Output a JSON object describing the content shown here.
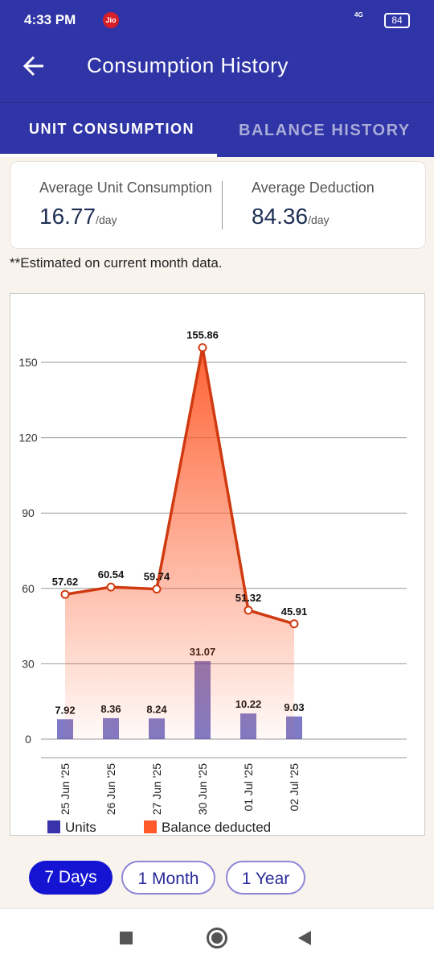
{
  "status_bar": {
    "time": "4:33 PM",
    "carrier": "Jio",
    "network": "4G",
    "battery": "84"
  },
  "header": {
    "title": "Consumption History"
  },
  "tabs": [
    "UNIT CONSUMPTION",
    "BALANCE HISTORY"
  ],
  "summary": [
    {
      "label": "Average Unit Consumption",
      "value": 16.77,
      "unit": "/day"
    },
    {
      "label": "Average Deduction",
      "value": 84.36,
      "unit": "/day"
    }
  ],
  "note": "**Estimated on current month data.",
  "chart_data": {
    "type": "bar-area",
    "categories": [
      "25 Jun '25",
      "26 Jun '25",
      "27 Jun '25",
      "30 Jun '25",
      "01 Jul '25",
      "02 Jul '25"
    ],
    "series": [
      {
        "name": "Units",
        "color": "#3a32a8",
        "kind": "bar",
        "values": [
          7.92,
          8.36,
          8.24,
          31.07,
          10.22,
          9.03
        ]
      },
      {
        "name": "Balance deducted",
        "color": "#ff5a2a",
        "kind": "area",
        "values": [
          57.62,
          60.54,
          59.74,
          155.86,
          51.32,
          45.91
        ]
      }
    ],
    "ylim": [
      0,
      170
    ],
    "yticks": [
      0,
      30,
      60,
      90,
      120,
      150
    ],
    "grid": true,
    "legend": "bottom-left"
  },
  "range_buttons": [
    "7 Days",
    "1 Month",
    "1 Year"
  ]
}
